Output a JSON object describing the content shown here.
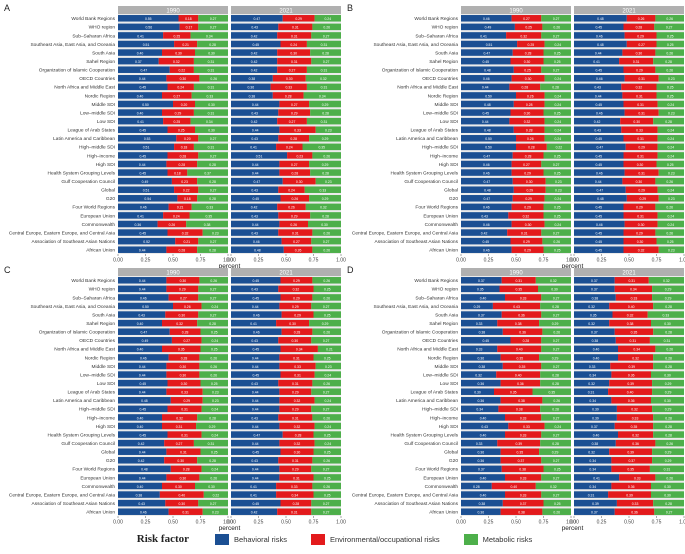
{
  "regions": [
    "World Bank Regions",
    "WHO region",
    "Sub–Saharan Africa",
    "Southeast Asia, East Asia, and Oceania",
    "South Asia",
    "Sahel Region",
    "Organization of Islamic Cooperation",
    "OECD Countries",
    "North Africa and Middle East",
    "Nordic Region",
    "Middle SDI",
    "Low–middle SDI",
    "Low SDI",
    "League of Arab States",
    "Latin America and Caribbean",
    "High–middle SDI",
    "High–income",
    "High SDI",
    "Health System Grouping Levels",
    "Gulf Cooperation Council",
    "Global",
    "G20",
    "Four World Regions",
    "European Union",
    "Commonwealth",
    "Central Europe, Eastern Europe, and Central Asia",
    "Association of Southeast Asian Nations",
    "African Union"
  ],
  "years": [
    "1990",
    "2021"
  ],
  "xlabel": "percent",
  "xticks": [
    "0.00",
    "0.25",
    "0.50",
    "0.75",
    "1.00"
  ],
  "legend": {
    "title": "Risk factor",
    "items": [
      {
        "label": "Behavioral risks",
        "color": "#1b4f93"
      },
      {
        "label": "Environmental/occupational risks",
        "color": "#e31a1c"
      },
      {
        "label": "Metabolic risks",
        "color": "#4daf4a"
      }
    ]
  },
  "chart_data": [
    {
      "type": "bar",
      "stacked": "horizontal-percent",
      "panel": "A",
      "series_names": [
        "Behavioral risks",
        "Environmental/occupational risks",
        "Metabolic risks"
      ],
      "1990": [
        [
          55,
          18,
          27
        ],
        [
          56,
          17,
          27
        ],
        [
          41,
          25,
          34
        ],
        [
          51,
          21,
          28
        ],
        [
          40,
          30,
          30
        ],
        [
          37,
          32,
          31
        ],
        [
          47,
          22,
          31
        ],
        [
          44,
          30,
          26
        ],
        [
          45,
          24,
          31
        ],
        [
          40,
          27,
          33
        ],
        [
          50,
          20,
          30
        ],
        [
          40,
          29,
          31
        ],
        [
          41,
          25,
          34
        ],
        [
          45,
          25,
          30
        ],
        [
          53,
          20,
          27
        ],
        [
          51,
          18,
          31
        ],
        [
          45,
          28,
          27
        ],
        [
          44,
          28,
          28
        ],
        [
          45,
          18,
          37
        ],
        [
          49,
          23,
          28
        ],
        [
          51,
          22,
          27
        ],
        [
          54,
          18,
          28
        ],
        [
          46,
          21,
          33
        ],
        [
          41,
          24,
          35
        ],
        [
          36,
          26,
          38
        ],
        [
          45,
          32,
          23
        ],
        [
          52,
          21,
          27
        ],
        [
          44,
          28,
          28
        ]
      ],
      "2021": [
        [
          47,
          29,
          24
        ],
        [
          43,
          31,
          26
        ],
        [
          42,
          31,
          27
        ],
        [
          45,
          24,
          31
        ],
        [
          42,
          30,
          28
        ],
        [
          42,
          31,
          27
        ],
        [
          42,
          27,
          31
        ],
        [
          38,
          30,
          32
        ],
        [
          36,
          33,
          31
        ],
        [
          38,
          28,
          34
        ],
        [
          44,
          27,
          29
        ],
        [
          43,
          29,
          28
        ],
        [
          42,
          27,
          31
        ],
        [
          44,
          33,
          23
        ],
        [
          43,
          28,
          29
        ],
        [
          41,
          24,
          35
        ],
        [
          51,
          23,
          26
        ],
        [
          44,
          27,
          29
        ],
        [
          44,
          28,
          28
        ],
        [
          47,
          30,
          23
        ],
        [
          43,
          24,
          33
        ],
        [
          45,
          26,
          29
        ],
        [
          42,
          26,
          32
        ],
        [
          43,
          29,
          28
        ],
        [
          44,
          26,
          30
        ],
        [
          43,
          31,
          26
        ],
        [
          46,
          27,
          27
        ],
        [
          48,
          26,
          26
        ]
      ]
    },
    {
      "type": "bar",
      "stacked": "horizontal-percent",
      "panel": "B",
      "series_names": [
        "Behavioral risks",
        "Environmental/occupational risks",
        "Metabolic risks"
      ],
      "1990": [
        [
          46,
          27,
          27
        ],
        [
          49,
          25,
          26
        ],
        [
          41,
          32,
          27
        ],
        [
          51,
          25,
          24
        ],
        [
          47,
          28,
          25
        ],
        [
          45,
          30,
          25
        ],
        [
          48,
          25,
          27
        ],
        [
          46,
          30,
          24
        ],
        [
          44,
          28,
          28
        ],
        [
          50,
          26,
          24
        ],
        [
          48,
          28,
          24
        ],
        [
          45,
          30,
          25
        ],
        [
          44,
          32,
          24
        ],
        [
          48,
          28,
          24
        ],
        [
          50,
          26,
          24
        ],
        [
          50,
          28,
          22
        ],
        [
          47,
          28,
          25
        ],
        [
          46,
          27,
          27
        ],
        [
          46,
          29,
          25
        ],
        [
          47,
          30,
          23
        ],
        [
          48,
          29,
          23
        ],
        [
          47,
          29,
          24
        ],
        [
          46,
          29,
          25
        ],
        [
          43,
          32,
          25
        ],
        [
          46,
          30,
          24
        ],
        [
          42,
          31,
          27
        ],
        [
          45,
          29,
          26
        ],
        [
          46,
          29,
          25
        ]
      ],
      "2021": [
        [
          48,
          26,
          26
        ],
        [
          45,
          28,
          27
        ],
        [
          46,
          29,
          25
        ],
        [
          48,
          27,
          25
        ],
        [
          44,
          30,
          26
        ],
        [
          41,
          31,
          28
        ],
        [
          45,
          29,
          26
        ],
        [
          46,
          31,
          23
        ],
        [
          43,
          32,
          25
        ],
        [
          44,
          31,
          25
        ],
        [
          45,
          31,
          24
        ],
        [
          46,
          31,
          23
        ],
        [
          42,
          30,
          28
        ],
        [
          43,
          33,
          24
        ],
        [
          45,
          31,
          24
        ],
        [
          47,
          29,
          24
        ],
        [
          45,
          31,
          24
        ],
        [
          45,
          30,
          25
        ],
        [
          46,
          31,
          23
        ],
        [
          44,
          30,
          26
        ],
        [
          47,
          29,
          24
        ],
        [
          48,
          29,
          23
        ],
        [
          45,
          29,
          26
        ],
        [
          45,
          31,
          24
        ],
        [
          46,
          30,
          24
        ],
        [
          45,
          29,
          26
        ],
        [
          45,
          30,
          25
        ],
        [
          45,
          32,
          23
        ]
      ]
    },
    {
      "type": "bar",
      "stacked": "horizontal-percent",
      "panel": "C",
      "series_names": [
        "Behavioral risks",
        "Environmental/occupational risks",
        "Metabolic risks"
      ],
      "1990": [
        [
          44,
          30,
          26
        ],
        [
          44,
          29,
          27
        ],
        [
          46,
          27,
          27
        ],
        [
          50,
          26,
          24
        ],
        [
          43,
          30,
          27
        ],
        [
          40,
          32,
          28
        ],
        [
          47,
          28,
          25
        ],
        [
          49,
          27,
          24
        ],
        [
          40,
          35,
          25
        ],
        [
          46,
          28,
          26
        ],
        [
          44,
          30,
          26
        ],
        [
          44,
          30,
          26
        ],
        [
          45,
          30,
          25
        ],
        [
          44,
          33,
          23
        ],
        [
          48,
          29,
          23
        ],
        [
          45,
          31,
          24
        ],
        [
          40,
          32,
          28
        ],
        [
          40,
          31,
          29
        ],
        [
          45,
          31,
          24
        ],
        [
          42,
          27,
          31
        ],
        [
          44,
          31,
          25
        ],
        [
          42,
          30,
          28
        ],
        [
          48,
          28,
          24
        ],
        [
          44,
          30,
          26
        ],
        [
          40,
          30,
          30
        ],
        [
          38,
          40,
          22
        ],
        [
          43,
          30,
          27
        ],
        [
          46,
          31,
          23
        ]
      ],
      "2021": [
        [
          45,
          29,
          26
        ],
        [
          43,
          32,
          25
        ],
        [
          45,
          29,
          26
        ],
        [
          44,
          29,
          27
        ],
        [
          46,
          29,
          25
        ],
        [
          41,
          30,
          29
        ],
        [
          46,
          28,
          26
        ],
        [
          43,
          30,
          27
        ],
        [
          45,
          34,
          21
        ],
        [
          44,
          31,
          25
        ],
        [
          44,
          33,
          23
        ],
        [
          45,
          31,
          24
        ],
        [
          43,
          31,
          26
        ],
        [
          44,
          29,
          27
        ],
        [
          44,
          32,
          24
        ],
        [
          44,
          29,
          27
        ],
        [
          43,
          31,
          26
        ],
        [
          44,
          32,
          24
        ],
        [
          47,
          28,
          25
        ],
        [
          44,
          32,
          24
        ],
        [
          45,
          30,
          25
        ],
        [
          43,
          31,
          26
        ],
        [
          44,
          29,
          27
        ],
        [
          44,
          31,
          25
        ],
        [
          41,
          33,
          26
        ],
        [
          41,
          34,
          25
        ],
        [
          45,
          28,
          27
        ],
        [
          42,
          31,
          27
        ]
      ]
    },
    {
      "type": "bar",
      "stacked": "horizontal-percent",
      "panel": "D",
      "series_names": [
        "Behavioral risks",
        "Environmental/occupational risks",
        "Metabolic risks"
      ],
      "1990": [
        [
          37,
          31,
          32
        ],
        [
          35,
          35,
          30
        ],
        [
          40,
          33,
          27
        ],
        [
          29,
          43,
          28
        ],
        [
          37,
          36,
          27
        ],
        [
          33,
          38,
          29
        ],
        [
          38,
          36,
          26
        ],
        [
          45,
          28,
          27
        ],
        [
          33,
          40,
          27
        ],
        [
          36,
          35,
          29
        ],
        [
          38,
          35,
          27
        ],
        [
          32,
          40,
          28
        ],
        [
          36,
          36,
          28
        ],
        [
          30,
          35,
          35
        ],
        [
          36,
          38,
          26
        ],
        [
          34,
          38,
          28
        ],
        [
          40,
          33,
          27
        ],
        [
          43,
          33,
          24
        ],
        [
          40,
          33,
          27
        ],
        [
          33,
          39,
          28
        ],
        [
          36,
          35,
          29
        ],
        [
          36,
          37,
          27
        ],
        [
          37,
          38,
          25
        ],
        [
          40,
          33,
          27
        ],
        [
          28,
          40,
          32
        ],
        [
          40,
          33,
          27
        ],
        [
          38,
          37,
          25
        ],
        [
          36,
          38,
          26
        ]
      ],
      "2021": [
        [
          37,
          31,
          32
        ],
        [
          37,
          34,
          29
        ],
        [
          38,
          33,
          29
        ],
        [
          32,
          40,
          28
        ],
        [
          35,
          32,
          33
        ],
        [
          32,
          38,
          30
        ],
        [
          37,
          35,
          28
        ],
        [
          38,
          31,
          31
        ],
        [
          40,
          34,
          26
        ],
        [
          40,
          32,
          28
        ],
        [
          33,
          39,
          28
        ],
        [
          34,
          36,
          30
        ],
        [
          32,
          39,
          29
        ],
        [
          31,
          40,
          29
        ],
        [
          34,
          36,
          30
        ],
        [
          39,
          32,
          29
        ],
        [
          39,
          33,
          28
        ],
        [
          37,
          35,
          28
        ],
        [
          40,
          32,
          28
        ],
        [
          38,
          36,
          26
        ],
        [
          32,
          39,
          29
        ],
        [
          34,
          37,
          29
        ],
        [
          34,
          35,
          31
        ],
        [
          41,
          33,
          26
        ],
        [
          34,
          36,
          30
        ],
        [
          31,
          39,
          30
        ],
        [
          39,
          33,
          28
        ],
        [
          37,
          36,
          27
        ]
      ]
    }
  ]
}
